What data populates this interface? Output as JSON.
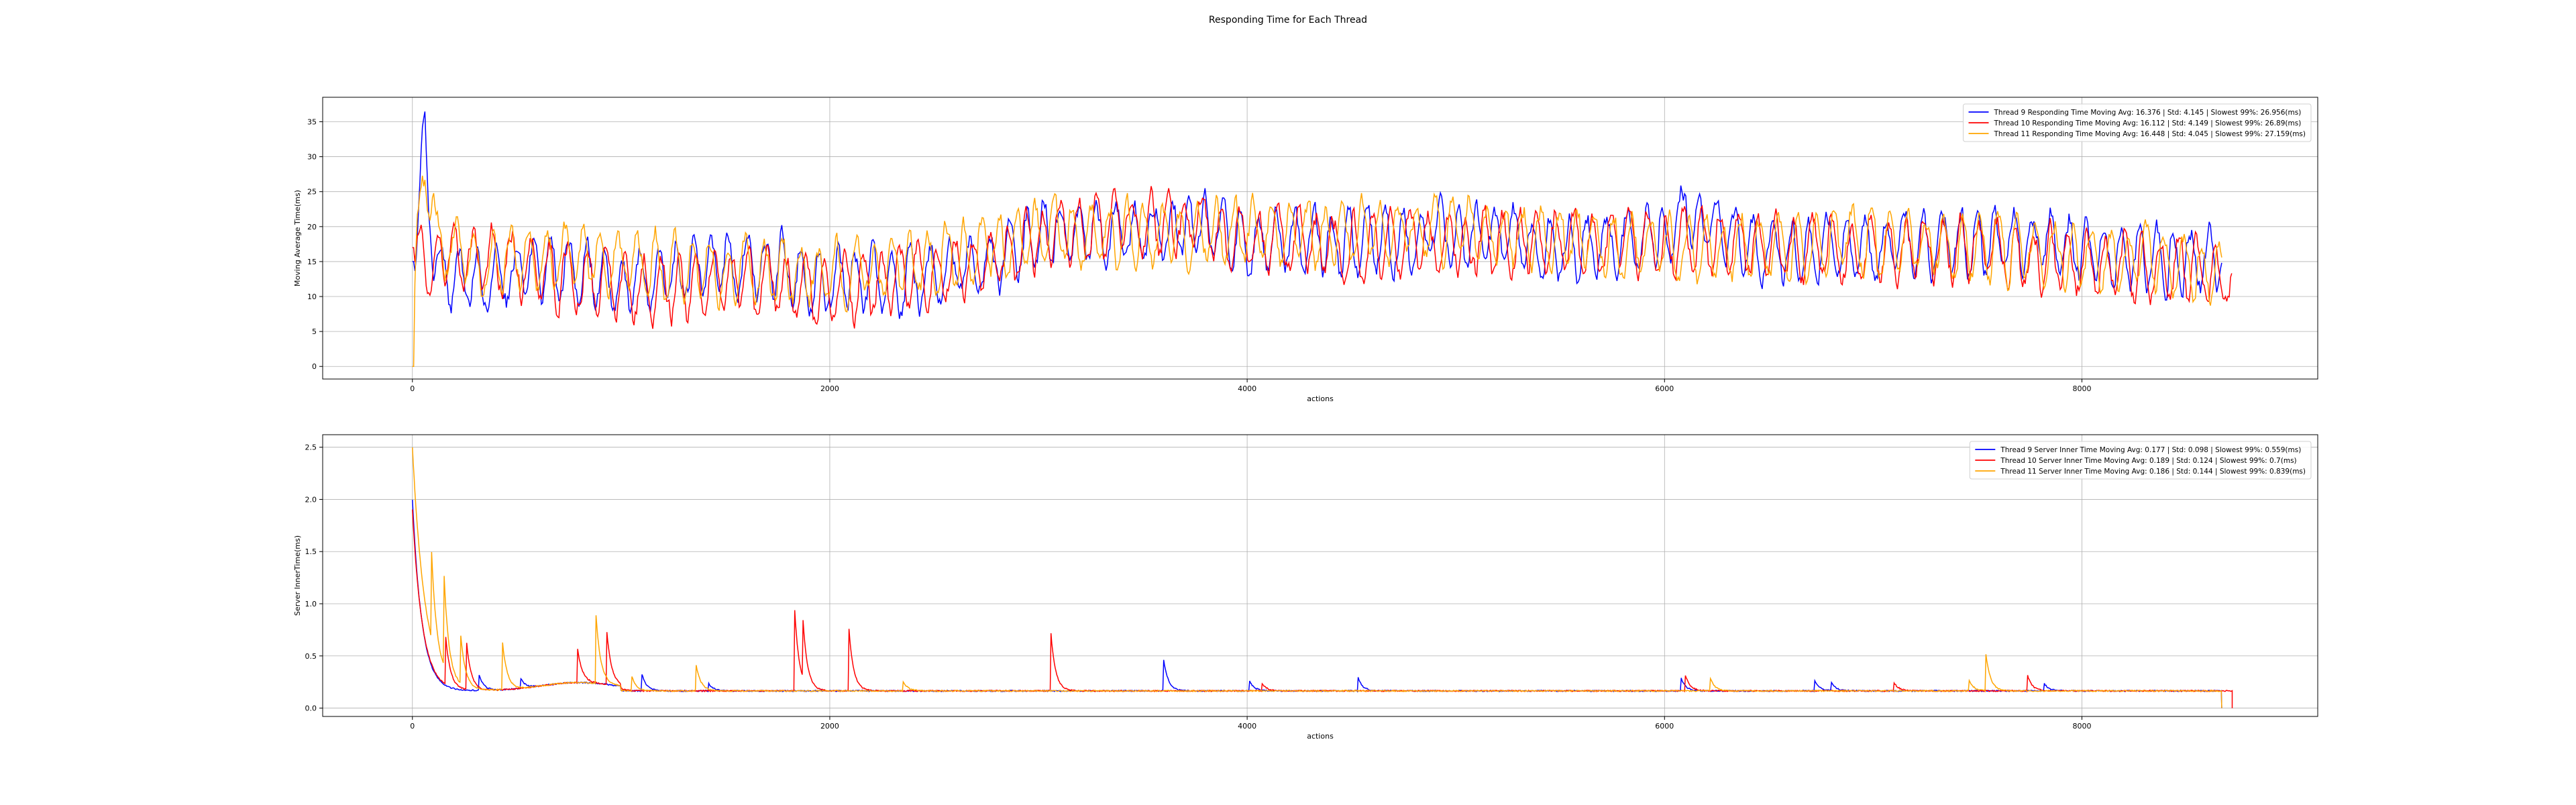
{
  "figure": {
    "title": "Responding Time for Each Thread"
  },
  "chart_data": [
    {
      "type": "line",
      "xlabel": "actions",
      "ylabel": "Moving Average Time(ms)",
      "xlim": [
        -430,
        9130
      ],
      "ylim": [
        -1.8,
        38.5
      ],
      "xticks": [
        0,
        2000,
        4000,
        6000,
        8000
      ],
      "yticks": [
        0,
        5,
        10,
        15,
        20,
        25,
        30,
        35
      ],
      "grid": true,
      "legend_position": "top-right",
      "x_count": 8720,
      "series": [
        {
          "name": "Thread 9 Responding Time Moving Avg: 16.376 | Std: 4.145 | Slowest 99%: 26.956(ms)",
          "color": "#0000ff",
          "x_end": 8670,
          "x": [
            0,
            20,
            60,
            100,
            200,
            400,
            700,
            1000,
            1500,
            1800,
            2000,
            2400,
            2800,
            3000,
            3500,
            3800,
            4000,
            4500,
            5000,
            5500,
            6000,
            6100,
            6500,
            7000,
            7500,
            8000,
            8300,
            8670
          ],
          "y": [
            15,
            18,
            33,
            16,
            12,
            13,
            14,
            12,
            15,
            14,
            12,
            12,
            15,
            19,
            19,
            20,
            18,
            18,
            19,
            17,
            19,
            22,
            16,
            17,
            18,
            17,
            16,
            15
          ]
        },
        {
          "name": "Thread 10 Responding Time Moving Avg: 16.112 | Std: 4.149 | Slowest 99%: 26.89(ms)",
          "color": "#ff0000",
          "x_end": 8720,
          "x": [
            0,
            20,
            100,
            400,
            800,
            1200,
            1600,
            2000,
            2400,
            2800,
            3000,
            3400,
            3800,
            4000,
            4500,
            5000,
            5500,
            6000,
            6500,
            7000,
            7500,
            8000,
            8500,
            8720
          ],
          "y": [
            17,
            16,
            15,
            15,
            13,
            11,
            12,
            11,
            13,
            15,
            18,
            21,
            20,
            18,
            17,
            18,
            18,
            18,
            17,
            17,
            17,
            15,
            14,
            12
          ]
        },
        {
          "name": "Thread 11 Responding Time Moving Avg: 16.448 | Std: 4.045 | Slowest 99%: 27.159(ms)",
          "color": "#ffa500",
          "x_end": 8670,
          "x": [
            0,
            15,
            60,
            120,
            300,
            600,
            1000,
            1500,
            1800,
            2000,
            2500,
            3000,
            3500,
            4000,
            4500,
            5000,
            5500,
            6000,
            6500,
            7000,
            7500,
            8000,
            8400,
            8670
          ],
          "y": [
            0,
            16,
            28,
            18,
            15,
            16,
            15,
            14,
            13,
            13,
            15,
            19,
            19,
            19,
            19,
            20,
            18,
            17,
            17,
            18,
            17,
            16,
            15,
            13
          ]
        }
      ]
    },
    {
      "type": "line",
      "xlabel": "actions",
      "ylabel": "Server InnerTime(ms)",
      "xlim": [
        -430,
        9130
      ],
      "ylim": [
        -0.08,
        2.62
      ],
      "xticks": [
        0,
        2000,
        4000,
        6000,
        8000
      ],
      "yticks": [
        0.0,
        0.5,
        1.0,
        1.5,
        2.0,
        2.5
      ],
      "grid": true,
      "legend_position": "top-right",
      "series": [
        {
          "name": "Thread 9 Server Inner Time Moving Avg: 0.177 | Std: 0.098 | Slowest 99%: 0.559(ms)",
          "color": "#0000ff",
          "x_end": 8670,
          "start": 2.0,
          "tau": 45,
          "base": 0.165,
          "spikes": [
            [
              320,
              0.15
            ],
            [
              520,
              0.09
            ],
            [
              1100,
              0.16
            ],
            [
              1420,
              0.07
            ],
            [
              3600,
              0.3
            ],
            [
              4010,
              0.1
            ],
            [
              4530,
              0.14
            ],
            [
              6080,
              0.12
            ],
            [
              6720,
              0.1
            ],
            [
              6800,
              0.08
            ],
            [
              7820,
              0.07
            ]
          ]
        },
        {
          "name": "Thread 10 Server Inner Time Moving Avg: 0.189 | Std: 0.124 | Slowest 99%: 0.7(ms)",
          "color": "#ff0000",
          "x_end": 8720,
          "start": 1.9,
          "tau": 48,
          "base": 0.165,
          "spikes": [
            [
              160,
              0.45
            ],
            [
              260,
              0.45
            ],
            [
              790,
              0.35
            ],
            [
              930,
              0.55
            ],
            [
              1830,
              0.85
            ],
            [
              1870,
              0.6
            ],
            [
              2090,
              0.65
            ],
            [
              3060,
              0.55
            ],
            [
              4070,
              0.08
            ],
            [
              6100,
              0.15
            ],
            [
              7100,
              0.08
            ],
            [
              7740,
              0.15
            ]
          ]
        },
        {
          "name": "Thread 11 Server Inner Time Moving Avg: 0.186 | Std: 0.144 | Slowest 99%: 0.839(ms)",
          "color": "#ffa500",
          "x_end": 8670,
          "start": 2.5,
          "tau": 60,
          "base": 0.165,
          "spikes": [
            [
              90,
              0.9
            ],
            [
              150,
              0.95
            ],
            [
              230,
              0.5
            ],
            [
              430,
              0.5
            ],
            [
              880,
              0.65
            ],
            [
              1050,
              0.15
            ],
            [
              1360,
              0.25
            ],
            [
              2350,
              0.1
            ],
            [
              6220,
              0.12
            ],
            [
              7460,
              0.1
            ],
            [
              7540,
              0.35
            ]
          ]
        }
      ]
    }
  ]
}
